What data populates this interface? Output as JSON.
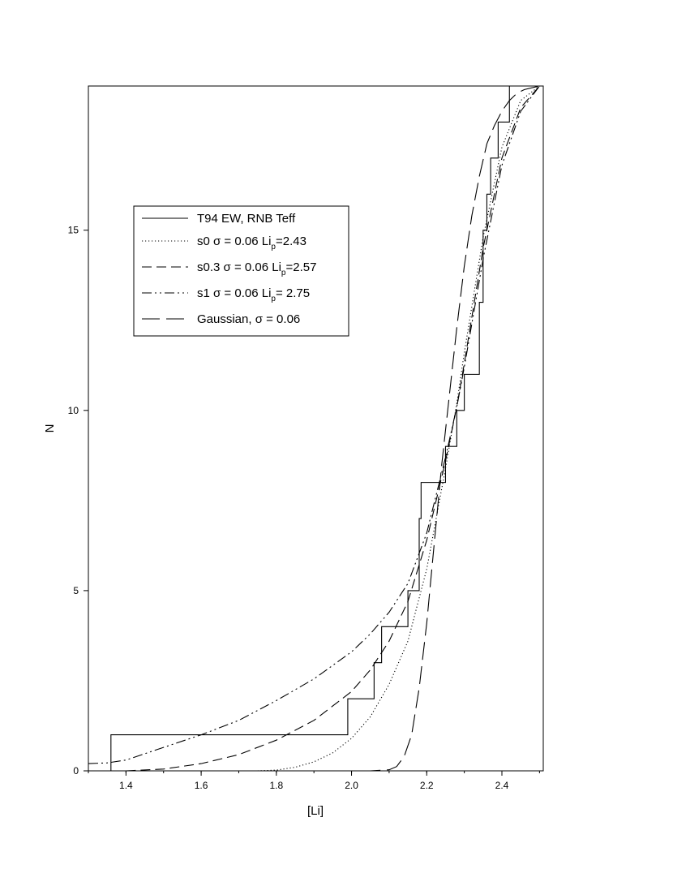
{
  "chart_data": {
    "type": "line",
    "title": "",
    "xlabel": "[Li]",
    "ylabel": "N",
    "xlim": [
      1.3,
      2.51
    ],
    "ylim": [
      0,
      19
    ],
    "xticks": [
      1.4,
      1.6,
      1.8,
      2.0,
      2.2,
      2.4
    ],
    "xtick_labels": [
      "1.4",
      "1.6",
      "1.8",
      "2.0",
      "2.2",
      "2.4"
    ],
    "yticks": [
      0,
      5,
      10,
      15
    ],
    "ytick_labels": [
      "0",
      "5",
      "10",
      "15"
    ],
    "grid": false,
    "legend_position": "upper-left",
    "series": [
      {
        "name": "T94 EW, RNB Teff",
        "label_pre": "T94 EW, RNB Teff",
        "label_sub": "",
        "label_post": "",
        "style": "solid",
        "kind": "step",
        "x": [
          1.36,
          1.99,
          2.06,
          2.08,
          2.15,
          2.18,
          2.185,
          2.19,
          2.25,
          2.28,
          2.3,
          2.34,
          2.35,
          2.36,
          2.37,
          2.38,
          2.39,
          2.41,
          2.42
        ],
        "y": [
          1,
          2,
          3,
          4,
          5,
          7,
          8,
          8,
          9,
          10,
          11,
          13,
          15,
          16,
          17,
          17,
          18,
          18,
          19
        ]
      },
      {
        "name": "s0 σ = 0.06 Lip=2.43",
        "label_pre": "s0 σ = 0.06 Li",
        "label_sub": "p",
        "label_post": "=2.43",
        "style": "dotted",
        "kind": "curve",
        "x": [
          1.75,
          1.8,
          1.85,
          1.9,
          1.95,
          2.0,
          2.05,
          2.1,
          2.15,
          2.2,
          2.25,
          2.28,
          2.3,
          2.35,
          2.4,
          2.45,
          2.5
        ],
        "y": [
          0.0,
          0.02,
          0.1,
          0.25,
          0.5,
          0.9,
          1.5,
          2.4,
          3.6,
          5.6,
          8.4,
          10.2,
          11.6,
          14.8,
          17.3,
          18.6,
          19.0
        ]
      },
      {
        "name": "s0.3 σ = 0.06 Lip=2.57",
        "label_pre": "s0.3 σ = 0.06 Li",
        "label_sub": "p",
        "label_post": "=2.57",
        "style": "dashed",
        "kind": "curve",
        "x": [
          1.4,
          1.5,
          1.6,
          1.7,
          1.8,
          1.9,
          2.0,
          2.05,
          2.1,
          2.15,
          2.2,
          2.25,
          2.28,
          2.3,
          2.35,
          2.4,
          2.45,
          2.5
        ],
        "y": [
          0.0,
          0.05,
          0.2,
          0.45,
          0.85,
          1.4,
          2.2,
          2.8,
          3.6,
          4.7,
          6.4,
          8.6,
          10.1,
          11.3,
          14.5,
          17.0,
          18.4,
          19.0
        ]
      },
      {
        "name": "s1 σ = 0.06 Lip= 2.75",
        "label_pre": "s1 σ = 0.06 Li",
        "label_sub": "p",
        "label_post": "= 2.75",
        "style": "dashdotdot",
        "kind": "curve",
        "x": [
          1.3,
          1.35,
          1.4,
          1.5,
          1.6,
          1.7,
          1.8,
          1.9,
          2.0,
          2.05,
          2.1,
          2.15,
          2.2,
          2.25,
          2.28,
          2.3,
          2.35,
          2.4,
          2.45,
          2.5
        ],
        "y": [
          0.2,
          0.22,
          0.3,
          0.65,
          1.0,
          1.4,
          1.95,
          2.55,
          3.3,
          3.8,
          4.4,
          5.2,
          6.6,
          8.7,
          10.1,
          11.2,
          14.2,
          16.8,
          18.3,
          19.0
        ]
      },
      {
        "name": "Gaussian, σ = 0.06",
        "label_pre": "Gaussian, σ = 0.06",
        "label_sub": "",
        "label_post": "",
        "style": "longdash",
        "kind": "curve",
        "x": [
          1.9,
          2.05,
          2.1,
          2.12,
          2.14,
          2.16,
          2.18,
          2.2,
          2.22,
          2.24,
          2.26,
          2.28,
          2.3,
          2.32,
          2.34,
          2.36,
          2.38,
          2.4,
          2.42,
          2.44,
          2.46,
          2.5
        ],
        "y": [
          0.0,
          0.0,
          0.03,
          0.12,
          0.4,
          1.0,
          2.3,
          4.1,
          6.3,
          8.5,
          10.4,
          12.3,
          14.0,
          15.4,
          16.5,
          17.4,
          17.9,
          18.3,
          18.6,
          18.8,
          18.9,
          19.0
        ]
      }
    ]
  }
}
